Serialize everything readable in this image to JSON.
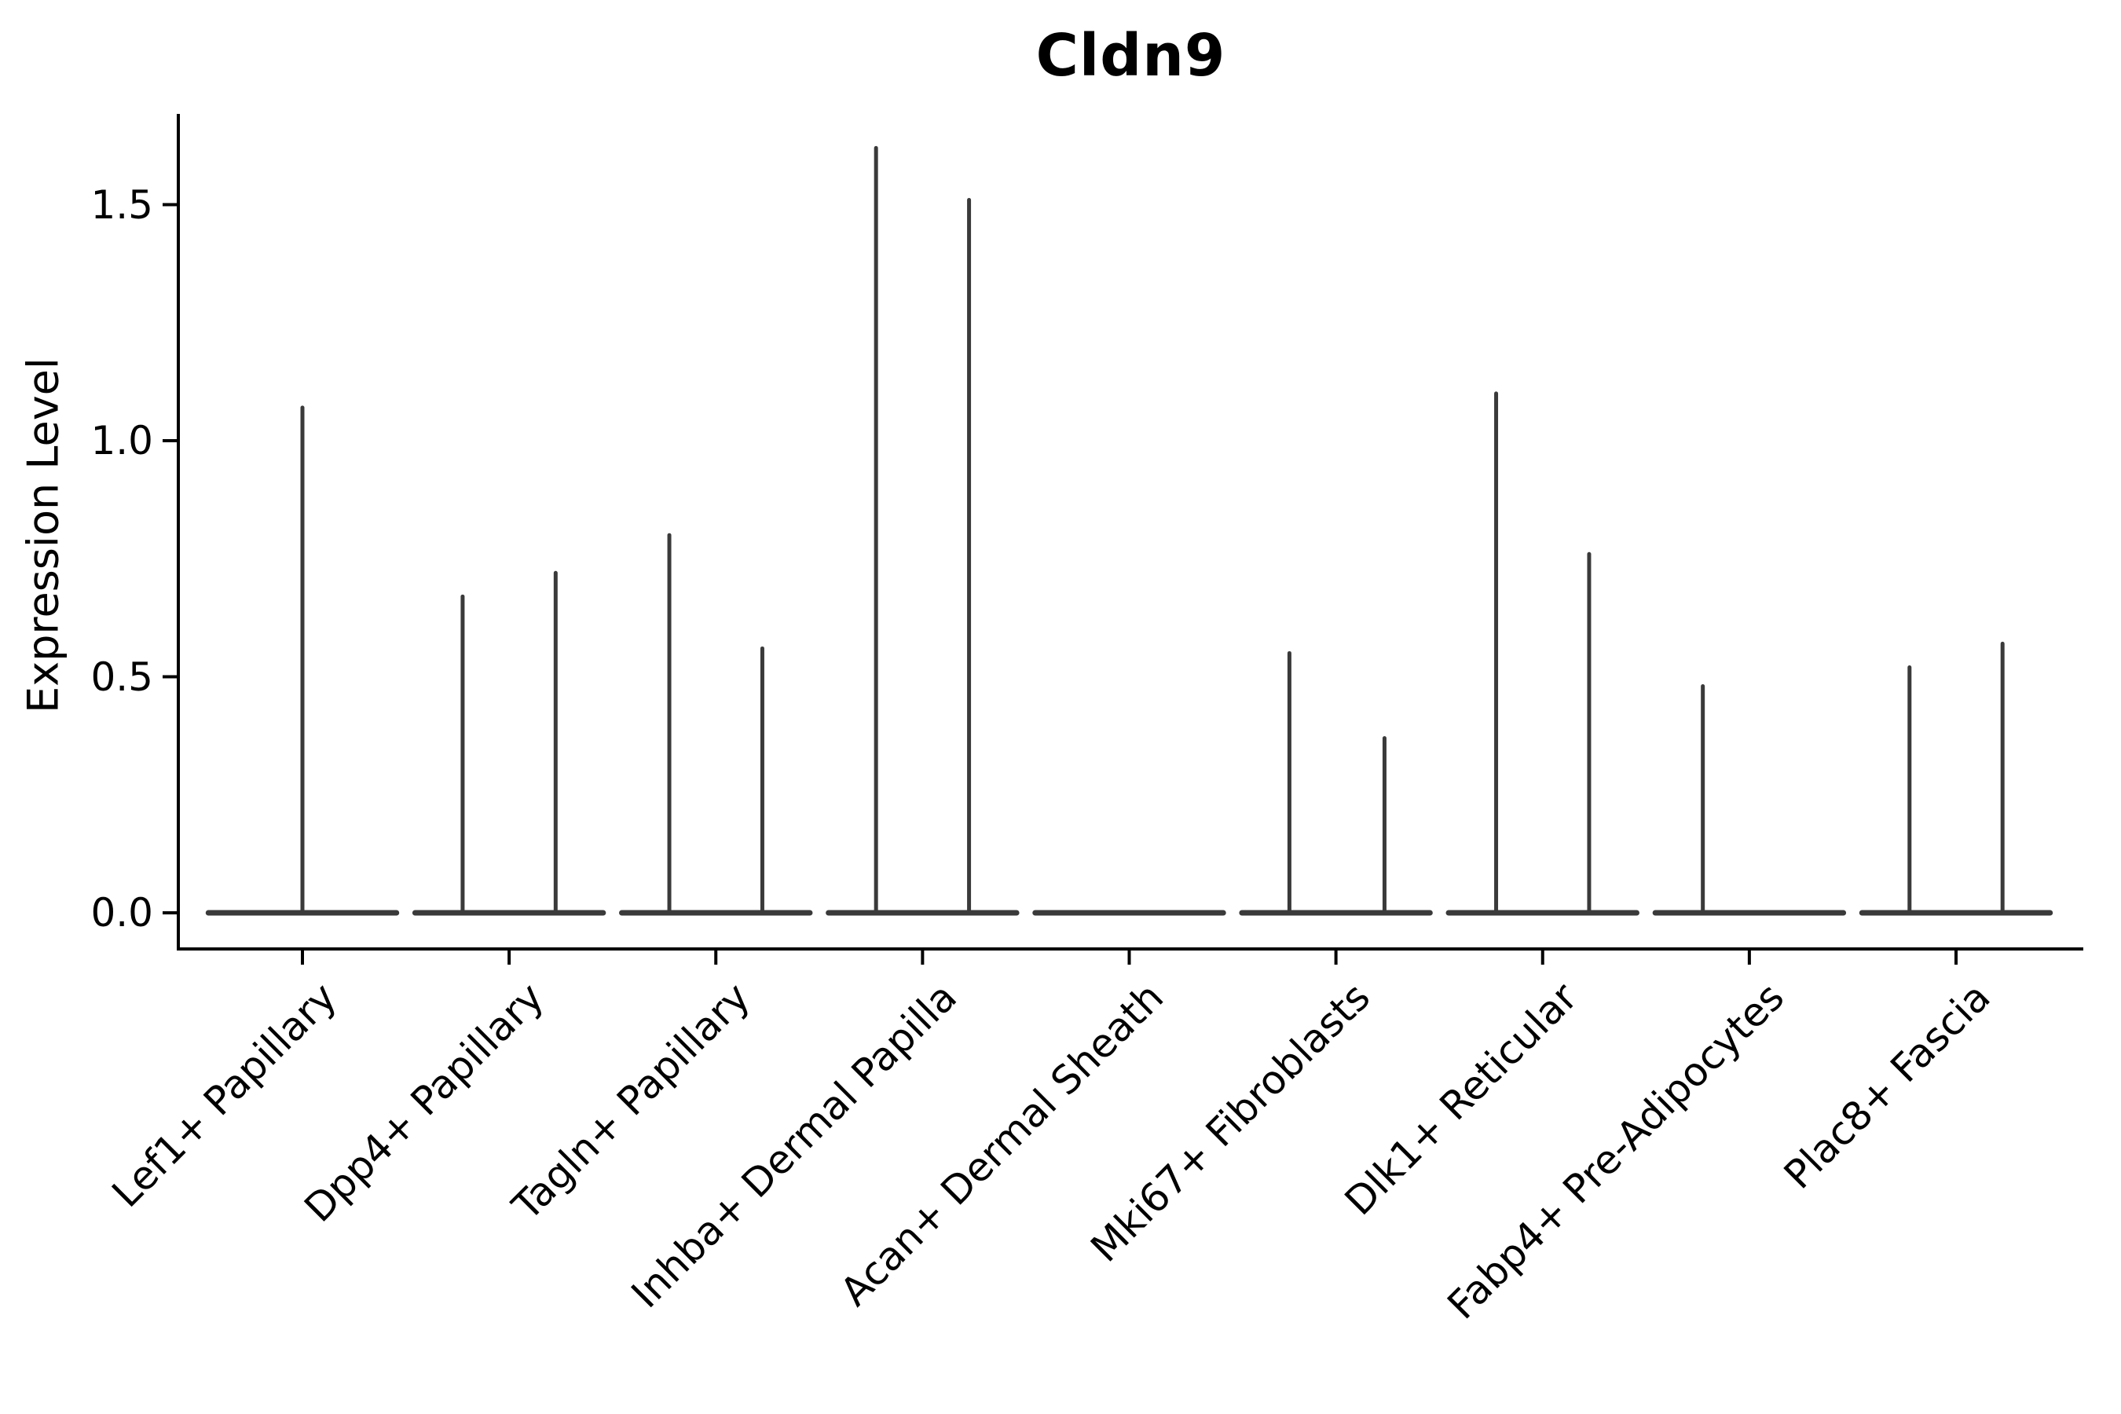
{
  "chart_data": {
    "type": "violin",
    "title": "Cldn9",
    "xlabel": "",
    "ylabel": "Expression Level",
    "ylim": [
      0,
      1.69
    ],
    "yticks": [
      {
        "value": 0.0,
        "label": "0.0"
      },
      {
        "value": 0.5,
        "label": "0.5"
      },
      {
        "value": 1.0,
        "label": "1.0"
      },
      {
        "value": 1.5,
        "label": "1.5"
      }
    ],
    "grid": false,
    "legend": "none",
    "colors": {
      "violin_stroke": "#3a3a3a",
      "axis_stroke": "#000000",
      "text": "#000000",
      "background": "#ffffff"
    },
    "categories": [
      "Lef1+ Papillary",
      "Dpp4+ Papillary",
      "Tagln+ Papillary",
      "Inhba+ Dermal Papilla",
      "Acan+ Dermal Sheath",
      "Mki67+ Fibroblasts",
      "Dlk1+ Reticular",
      "Fabp4+ Pre-Adipocytes",
      "Plac8+ Fascia"
    ],
    "violins": [
      {
        "category": "Lef1+ Papillary",
        "baseline_halfwidth": 0.455,
        "spikes": [
          {
            "pos": 0.0,
            "max": 1.07
          }
        ]
      },
      {
        "category": "Dpp4+ Papillary",
        "baseline_halfwidth": 0.455,
        "spikes": [
          {
            "pos": -0.225,
            "max": 0.67
          },
          {
            "pos": 0.225,
            "max": 0.72
          }
        ]
      },
      {
        "category": "Tagln+ Papillary",
        "baseline_halfwidth": 0.455,
        "spikes": [
          {
            "pos": -0.225,
            "max": 0.8
          },
          {
            "pos": 0.225,
            "max": 0.56
          }
        ]
      },
      {
        "category": "Inhba+ Dermal Papilla",
        "baseline_halfwidth": 0.455,
        "spikes": [
          {
            "pos": -0.225,
            "max": 1.62
          },
          {
            "pos": 0.225,
            "max": 1.51
          }
        ]
      },
      {
        "category": "Acan+ Dermal Sheath",
        "baseline_halfwidth": 0.455,
        "spikes": []
      },
      {
        "category": "Mki67+ Fibroblasts",
        "baseline_halfwidth": 0.455,
        "spikes": [
          {
            "pos": -0.225,
            "max": 0.55
          },
          {
            "pos": 0.235,
            "max": 0.37
          }
        ]
      },
      {
        "category": "Dlk1+ Reticular",
        "baseline_halfwidth": 0.455,
        "spikes": [
          {
            "pos": -0.225,
            "max": 1.1
          },
          {
            "pos": 0.225,
            "max": 0.76
          }
        ]
      },
      {
        "category": "Fabp4+ Pre-Adipocytes",
        "baseline_halfwidth": 0.455,
        "spikes": [
          {
            "pos": -0.225,
            "max": 0.48
          }
        ]
      },
      {
        "category": "Plac8+ Fascia",
        "baseline_halfwidth": 0.455,
        "spikes": [
          {
            "pos": -0.225,
            "max": 0.52
          },
          {
            "pos": 0.225,
            "max": 0.57
          }
        ]
      }
    ]
  }
}
